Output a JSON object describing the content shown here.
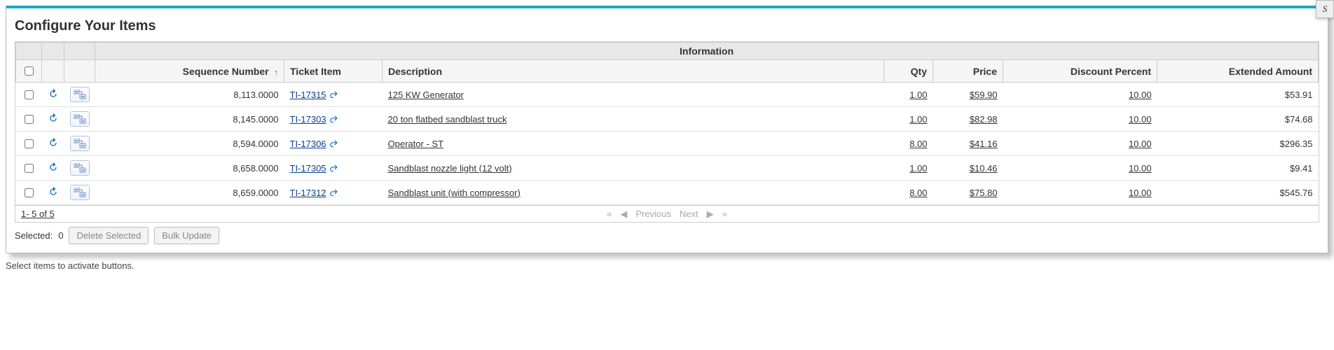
{
  "panel": {
    "title": "Configure Your Items",
    "group_header": "Information",
    "columns": {
      "sequence": "Sequence Number",
      "ticket": "Ticket Item",
      "description": "Description",
      "qty": "Qty",
      "price": "Price",
      "discount": "Discount Percent",
      "extended": "Extended Amount"
    },
    "rows": [
      {
        "sequence": "8,113.0000",
        "ticket": "TI-17315",
        "description": "125 KW Generator",
        "qty": "1.00",
        "price": "$59.90",
        "discount": "10.00",
        "extended": "$53.91"
      },
      {
        "sequence": "8,145.0000",
        "ticket": "TI-17303",
        "description": "20 ton flatbed sandblast truck",
        "qty": "1.00",
        "price": "$82.98",
        "discount": "10.00",
        "extended": "$74.68"
      },
      {
        "sequence": "8,594.0000",
        "ticket": "TI-17306",
        "description": "Operator - ST",
        "qty": "8.00",
        "price": "$41.16",
        "discount": "10.00",
        "extended": "$296.35"
      },
      {
        "sequence": "8,658.0000",
        "ticket": "TI-17305",
        "description": "Sandblast nozzle light (12 volt)",
        "qty": "1.00",
        "price": "$10.46",
        "discount": "10.00",
        "extended": "$9.41"
      },
      {
        "sequence": "8,659.0000",
        "ticket": "TI-17312",
        "description": "Sandblast unit (with compressor)",
        "qty": "8.00",
        "price": "$75.80",
        "discount": "10.00",
        "extended": "$545.76"
      }
    ],
    "pager": {
      "range": "1- 5  of  5",
      "first": "«",
      "prev_arrow": "◀",
      "previous": "Previous",
      "next": "Next",
      "next_arrow": "▶",
      "last": "»"
    },
    "footer": {
      "selected_label": "Selected:",
      "selected_count": "0",
      "delete_btn": "Delete Selected",
      "bulk_btn": "Bulk Update"
    },
    "hint": "Select items to activate buttons.",
    "colors": {
      "accent": "#1ca8c7",
      "link": "#0a3d8f",
      "icon_blue": "#0a6ed1",
      "header_bg": "#e8e8e8",
      "subheader_bg": "#f5f5f5",
      "border": "#cccccc",
      "disabled_text": "#aaaaaa"
    }
  }
}
